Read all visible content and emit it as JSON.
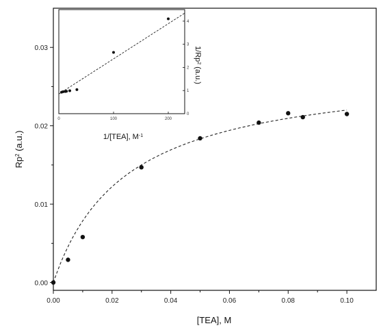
{
  "chart_data": [
    {
      "type": "scatter",
      "xlabel": "[TEA], M",
      "ylabel_base": "Rp",
      "ylabel_sup": "2",
      "ylabel_rest": " (a.u.)",
      "xlim": [
        0.0,
        0.11
      ],
      "ylim": [
        -0.001,
        0.035
      ],
      "x_ticks": [
        "0.00",
        "0.02",
        "0.04",
        "0.06",
        "0.08",
        "0.10"
      ],
      "y_ticks": [
        "0.00",
        "0.01",
        "0.02",
        "0.03"
      ],
      "series": [
        {
          "x": [
            0.0,
            0.005,
            0.01,
            0.03,
            0.05,
            0.07,
            0.08,
            0.085,
            0.1
          ],
          "y": [
            0.0,
            0.0029,
            0.0058,
            0.0147,
            0.0184,
            0.0204,
            0.0216,
            0.0211,
            0.0215
          ]
        }
      ],
      "fit": {
        "style": "dashed",
        "model": "hyperbolic",
        "vmax": 0.0275,
        "k": 0.025
      }
    },
    {
      "type": "scatter",
      "inset": true,
      "xlabel_base": "1/[TEA], M",
      "xlabel_sup": "-1",
      "ylabel_base": "1/Rp",
      "ylabel_sup": "2",
      "ylabel_rest": " (a.u.)",
      "xlim": [
        0,
        230
      ],
      "ylim": [
        0,
        4.5
      ],
      "x_ticks": [
        "0",
        "100",
        "200"
      ],
      "y_ticks": [
        "0",
        "1",
        "2",
        "3",
        "4"
      ],
      "series": [
        {
          "x": [
            5,
            8,
            12,
            14,
            20,
            33,
            100,
            200
          ],
          "y": [
            0.93,
            0.95,
            0.96,
            0.97,
            0.99,
            1.04,
            2.65,
            4.1
          ]
        }
      ],
      "fit": {
        "style": "dashed",
        "model": "linear",
        "intercept": 0.85,
        "slope": 0.0152
      }
    }
  ]
}
